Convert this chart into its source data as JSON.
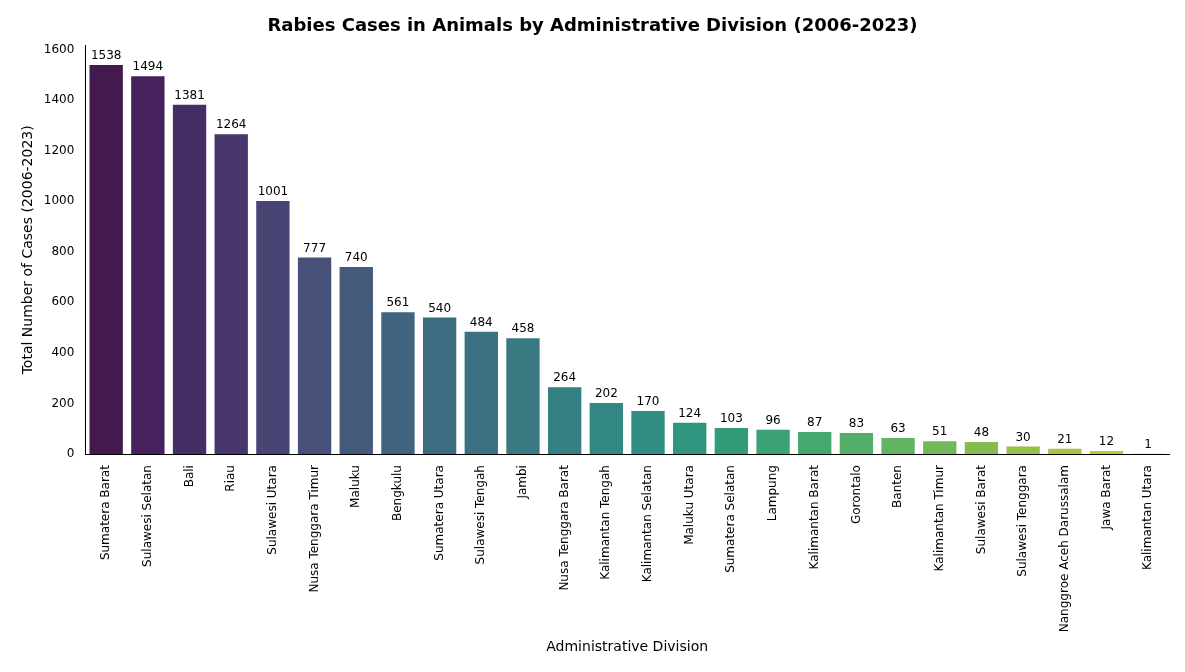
{
  "chart_data": {
    "type": "bar",
    "title": "Rabies Cases in Animals by Administrative Division (2006-2023)",
    "xlabel": "Administrative Division",
    "ylabel": "Total Number of Cases (2006-2023)",
    "categories": [
      "Sumatera Barat",
      "Sulawesi Selatan",
      "Bali",
      "Riau",
      "Sulawesi Utara",
      "Nusa Tenggara Timur",
      "Maluku",
      "Bengkulu",
      "Sumatera Utara",
      "Sulawesi Tengah",
      "Jambi",
      "Nusa Tenggara Barat",
      "Kalimantan Tengah",
      "Kalimantan Selatan",
      "Maluku Utara",
      "Sumatera Selatan",
      "Lampung",
      "Kalimantan Barat",
      "Gorontalo",
      "Banten",
      "Kalimantan Timur",
      "Sulawesi Barat",
      "Sulawesi Tenggara",
      "Nanggroe Aceh Darussalam",
      "Jawa Barat",
      "Kalimantan Utara"
    ],
    "values": [
      1538,
      1494,
      1381,
      1264,
      1001,
      777,
      740,
      561,
      540,
      484,
      458,
      264,
      202,
      170,
      124,
      103,
      96,
      87,
      83,
      63,
      51,
      48,
      30,
      21,
      12,
      1
    ],
    "colors": [
      "#43194f",
      "#47215c",
      "#472d66",
      "#48376d",
      "#474573",
      "#465079",
      "#435a7b",
      "#40637f",
      "#3d6b80",
      "#3a7281",
      "#387982",
      "#358083",
      "#328783",
      "#2f8e81",
      "#2f957e",
      "#329b7a",
      "#3aa275",
      "#45a870",
      "#53ae69",
      "#62b362",
      "#72b85a",
      "#84bc52",
      "#96c04a",
      "#a8c443",
      "#bac73e",
      "#cccb3c"
    ],
    "ylim": [
      0,
      1615
    ],
    "yticks": [
      0,
      200,
      400,
      600,
      800,
      1000,
      1200,
      1400,
      1600
    ],
    "grid": false,
    "legend": false,
    "data_labels": true
  }
}
